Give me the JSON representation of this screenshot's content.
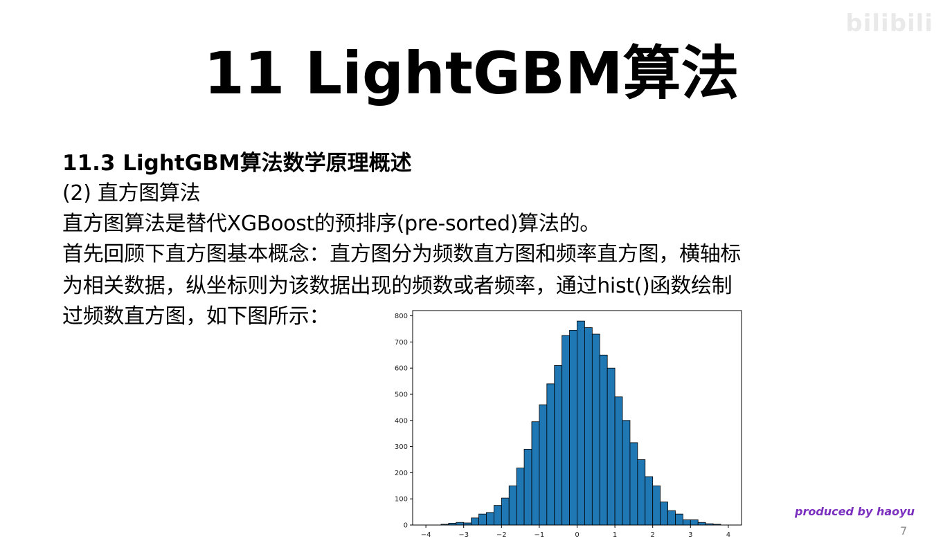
{
  "watermark": "bilibili",
  "slide": {
    "title": "11 LightGBM算法",
    "section": "11.3 LightGBM算法数学原理概述",
    "lines": [
      "(2) 直方图算法",
      "直方图算法是替代XGBoost的预排序(pre-sorted)算法的。",
      "首先回顾下直方图基本概念：直方图分为频数直方图和频率直方图，横轴标",
      "为相关数据，纵坐标则为该数据出现的频数或者频率，通过hist()函数绘制",
      "过频数直方图，如下图所示："
    ],
    "credit": "produced by haoyu",
    "page_number": "7"
  },
  "colors": {
    "bar_fill": "#1f77b4",
    "bar_edge": "#000000",
    "credit": "#7b2fbe"
  },
  "chart_data": {
    "type": "bar",
    "title": "",
    "xlabel": "",
    "ylabel": "",
    "xlim": [
      -4.35,
      4.35
    ],
    "ylim": [
      0,
      820
    ],
    "xticks": [
      -4,
      -3,
      -2,
      -1,
      0,
      1,
      2,
      3,
      4
    ],
    "yticks": [
      0,
      100,
      200,
      300,
      400,
      500,
      600,
      700,
      800
    ],
    "bin_edges": [
      -3.6,
      -3.4,
      -3.2,
      -3.0,
      -2.8,
      -2.6,
      -2.4,
      -2.2,
      -2.0,
      -1.8,
      -1.6,
      -1.4,
      -1.2,
      -1.0,
      -0.8,
      -0.6,
      -0.4,
      -0.2,
      0.0,
      0.2,
      0.4,
      0.6,
      0.8,
      1.0,
      1.2,
      1.4,
      1.6,
      1.8,
      2.0,
      2.2,
      2.4,
      2.6,
      2.8,
      3.0,
      3.2,
      3.4,
      3.6,
      3.8
    ],
    "values": [
      3,
      7,
      10,
      8,
      27,
      42,
      48,
      75,
      103,
      150,
      218,
      290,
      395,
      460,
      540,
      610,
      725,
      745,
      780,
      755,
      730,
      650,
      600,
      490,
      400,
      315,
      250,
      185,
      150,
      88,
      55,
      42,
      20,
      20,
      10,
      5,
      3
    ],
    "grid": false
  }
}
